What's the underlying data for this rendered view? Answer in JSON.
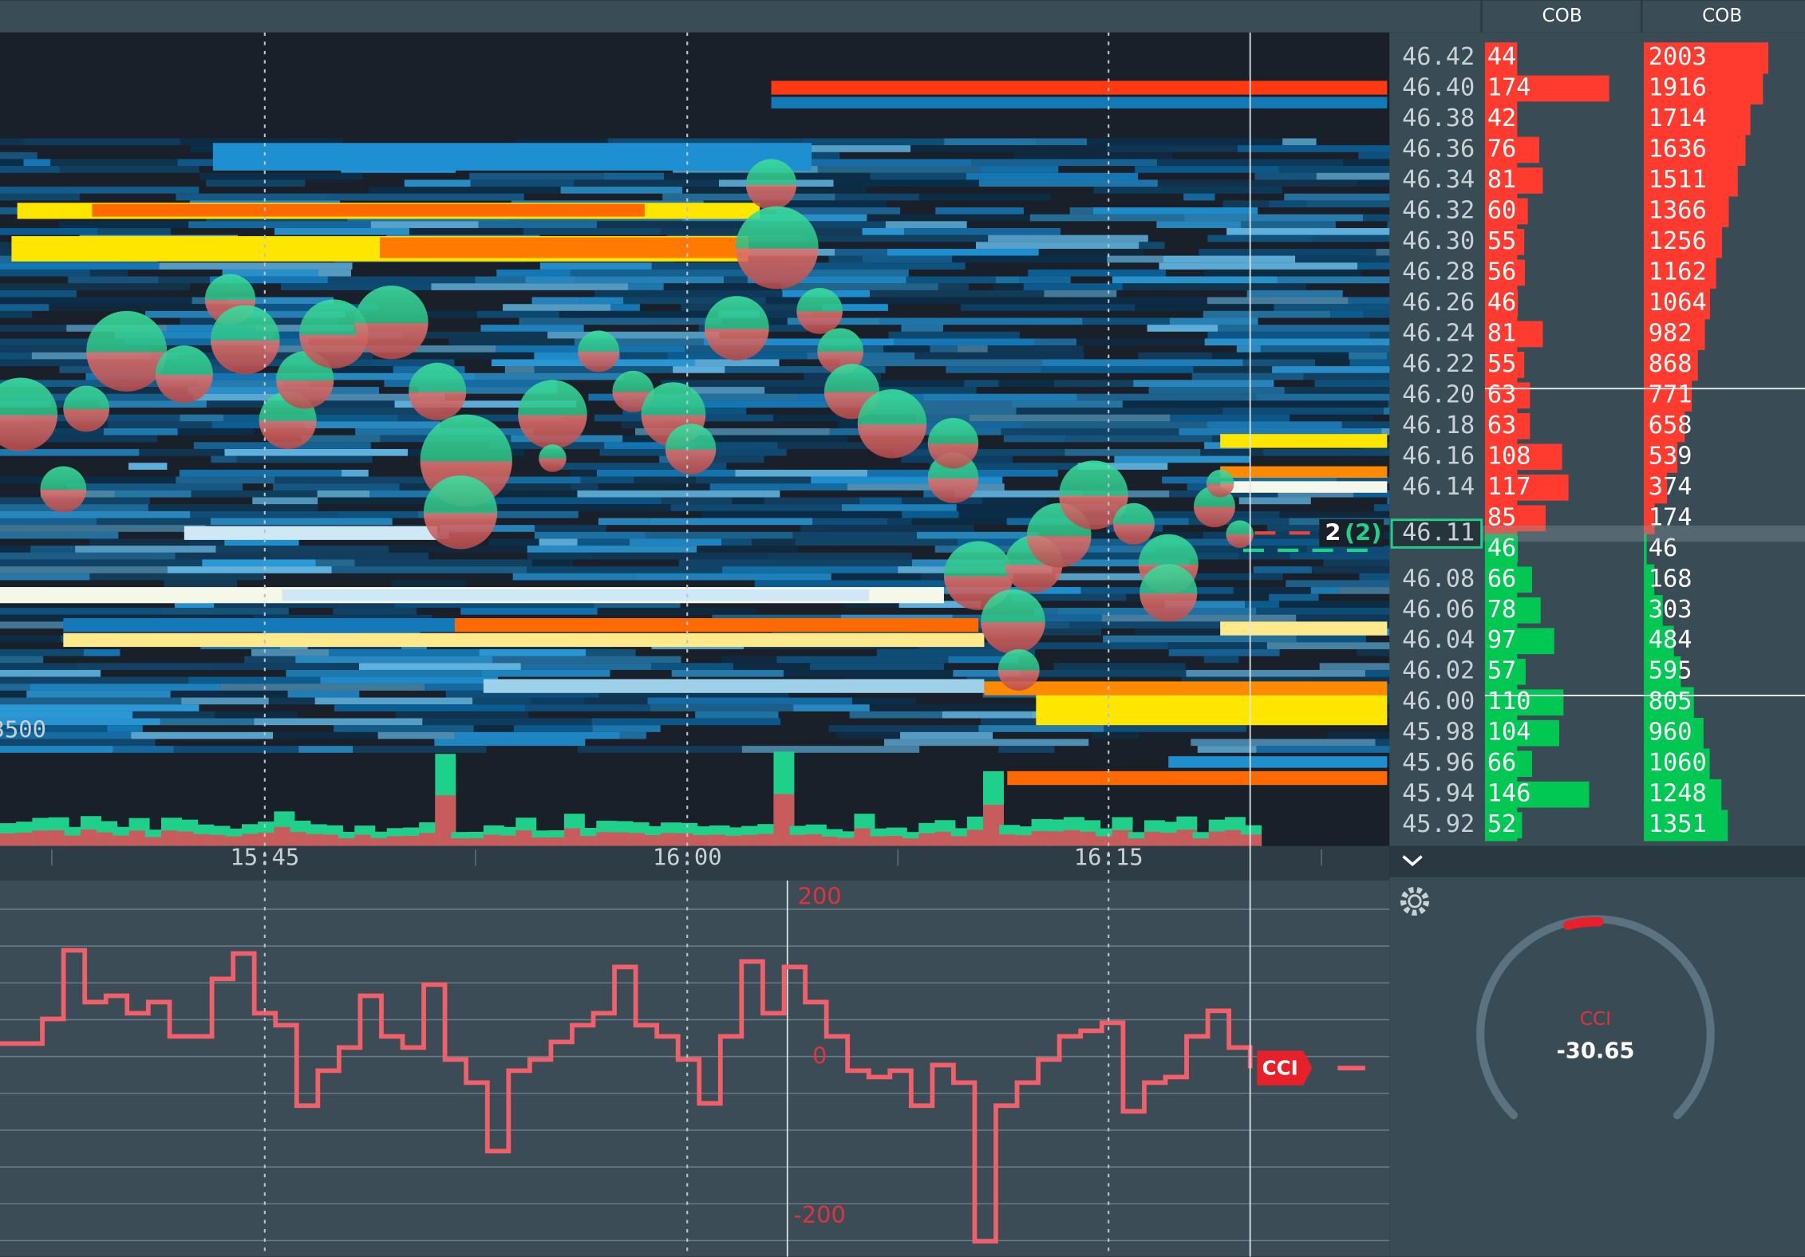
{
  "header": {
    "cob_labels": [
      "COB",
      "COB"
    ]
  },
  "ladder": {
    "current_price": "46.11",
    "rows": [
      {
        "price": "46.42",
        "size": 44,
        "cumulative": 2003,
        "side": "ask"
      },
      {
        "price": "46.40",
        "size": 174,
        "cumulative": 1916,
        "side": "ask"
      },
      {
        "price": "46.38",
        "size": 42,
        "cumulative": 1714,
        "side": "ask"
      },
      {
        "price": "46.36",
        "size": 76,
        "cumulative": 1636,
        "side": "ask"
      },
      {
        "price": "46.34",
        "size": 81,
        "cumulative": 1511,
        "side": "ask"
      },
      {
        "price": "46.32",
        "size": 60,
        "cumulative": 1366,
        "side": "ask"
      },
      {
        "price": "46.30",
        "size": 55,
        "cumulative": 1256,
        "side": "ask"
      },
      {
        "price": "46.28",
        "size": 56,
        "cumulative": 1162,
        "side": "ask"
      },
      {
        "price": "46.26",
        "size": 46,
        "cumulative": 1064,
        "side": "ask"
      },
      {
        "price": "46.24",
        "size": 81,
        "cumulative": 982,
        "side": "ask"
      },
      {
        "price": "46.22",
        "size": 55,
        "cumulative": 868,
        "side": "ask"
      },
      {
        "price": "46.20",
        "size": 63,
        "cumulative": 771,
        "side": "ask"
      },
      {
        "price": "46.18",
        "size": 63,
        "cumulative": 658,
        "side": "ask"
      },
      {
        "price": "46.16",
        "size": 108,
        "cumulative": 539,
        "side": "ask"
      },
      {
        "price": "46.14",
        "size": 117,
        "cumulative": 374,
        "side": "ask"
      },
      {
        "price": null,
        "size": 85,
        "cumulative": 174,
        "side": "ask"
      },
      {
        "price": null,
        "size": 46,
        "cumulative": 46,
        "side": "bid"
      },
      {
        "price": "46.08",
        "size": 66,
        "cumulative": 168,
        "side": "bid"
      },
      {
        "price": "46.06",
        "size": 78,
        "cumulative": 303,
        "side": "bid"
      },
      {
        "price": "46.04",
        "size": 97,
        "cumulative": 484,
        "side": "bid"
      },
      {
        "price": "46.02",
        "size": 57,
        "cumulative": 595,
        "side": "bid"
      },
      {
        "price": "46.00",
        "size": 110,
        "cumulative": 805,
        "side": "bid"
      },
      {
        "price": "45.98",
        "size": 104,
        "cumulative": 960,
        "side": "bid"
      },
      {
        "price": "45.96",
        "size": 66,
        "cumulative": 1060,
        "side": "bid"
      },
      {
        "price": "45.94",
        "size": 146,
        "cumulative": 1248,
        "side": "bid"
      },
      {
        "price": "45.92",
        "size": 52,
        "cumulative": 1351,
        "side": "bid"
      }
    ]
  },
  "chart": {
    "volume_label": "3500",
    "time_labels": [
      "15:45",
      "16:00",
      "16:15"
    ],
    "position": {
      "size": "2",
      "count": "(2)"
    }
  },
  "cci": {
    "badge": "CCI",
    "ticks": [
      200,
      0,
      -200
    ],
    "values": [
      17,
      17,
      48,
      134,
      69,
      77,
      55,
      69,
      26,
      26,
      98,
      130,
      55,
      40,
      -61,
      -17,
      12,
      77,
      26,
      12,
      91,
      -3,
      -32,
      -118,
      -17,
      -3,
      19,
      40,
      55,
      113,
      40,
      26,
      -3,
      -58,
      26,
      120,
      55,
      113,
      69,
      26,
      -17,
      -25,
      -17,
      -61,
      -10,
      -32,
      -231,
      -61,
      -32,
      -3,
      26,
      33,
      43,
      -68,
      -32,
      -25,
      26,
      58,
      12,
      -14
    ]
  },
  "gauge": {
    "label": "CCI",
    "value": "-30.65"
  }
}
